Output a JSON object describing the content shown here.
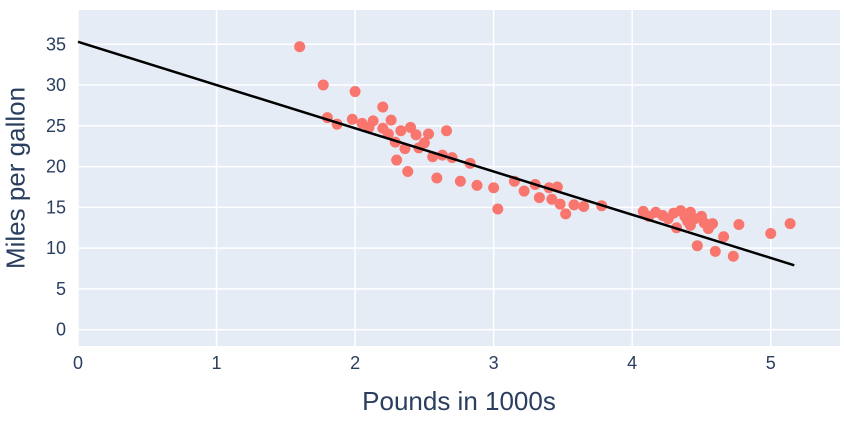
{
  "figure": {
    "background_color": "#ffffff"
  },
  "chart_data": {
    "type": "scatter",
    "title": "",
    "xlabel": "Pounds in 1000s",
    "ylabel": "Miles per gallon",
    "xlim": [
      0,
      5.5
    ],
    "ylim": [
      -2,
      39.2
    ],
    "xticks": [
      0,
      1,
      2,
      3,
      4,
      5
    ],
    "yticks": [
      0,
      5,
      10,
      15,
      20,
      25,
      30,
      35
    ],
    "grid": true,
    "legend_position": "none",
    "plot_bg_color": "#e5ecf6",
    "gridline_color": "#ffffff",
    "point_color": "#f8766d",
    "trendline_color": "#000000",
    "label_color": "#2a3f5f",
    "points": [
      [
        1.6,
        34.7
      ],
      [
        1.77,
        30.0
      ],
      [
        1.8,
        26.0
      ],
      [
        1.87,
        25.2
      ],
      [
        1.98,
        25.8
      ],
      [
        2.0,
        29.2
      ],
      [
        2.05,
        25.3
      ],
      [
        2.1,
        24.8
      ],
      [
        2.13,
        25.6
      ],
      [
        2.2,
        27.3
      ],
      [
        2.2,
        24.7
      ],
      [
        2.24,
        24.0
      ],
      [
        2.26,
        25.7
      ],
      [
        2.29,
        23.0
      ],
      [
        2.3,
        20.8
      ],
      [
        2.33,
        24.4
      ],
      [
        2.36,
        22.2
      ],
      [
        2.38,
        19.4
      ],
      [
        2.4,
        24.8
      ],
      [
        2.44,
        23.9
      ],
      [
        2.46,
        22.3
      ],
      [
        2.5,
        22.9
      ],
      [
        2.53,
        24.0
      ],
      [
        2.56,
        21.2
      ],
      [
        2.59,
        18.6
      ],
      [
        2.63,
        21.4
      ],
      [
        2.66,
        24.4
      ],
      [
        2.7,
        21.1
      ],
      [
        2.76,
        18.2
      ],
      [
        2.83,
        20.4
      ],
      [
        2.88,
        17.7
      ],
      [
        3.0,
        17.4
      ],
      [
        3.03,
        14.8
      ],
      [
        3.15,
        18.2
      ],
      [
        3.22,
        17.0
      ],
      [
        3.3,
        17.8
      ],
      [
        3.33,
        16.2
      ],
      [
        3.4,
        17.4
      ],
      [
        3.42,
        16.0
      ],
      [
        3.46,
        17.5
      ],
      [
        3.48,
        15.4
      ],
      [
        3.52,
        14.2
      ],
      [
        3.58,
        15.3
      ],
      [
        3.65,
        15.1
      ],
      [
        3.78,
        15.2
      ],
      [
        4.08,
        14.5
      ],
      [
        4.12,
        13.9
      ],
      [
        4.17,
        14.4
      ],
      [
        4.22,
        14.0
      ],
      [
        4.26,
        13.6
      ],
      [
        4.3,
        14.3
      ],
      [
        4.32,
        12.5
      ],
      [
        4.35,
        14.6
      ],
      [
        4.38,
        13.9
      ],
      [
        4.4,
        13.3
      ],
      [
        4.42,
        14.4
      ],
      [
        4.42,
        12.8
      ],
      [
        4.45,
        13.6
      ],
      [
        4.47,
        10.3
      ],
      [
        4.5,
        13.9
      ],
      [
        4.52,
        13.1
      ],
      [
        4.55,
        12.4
      ],
      [
        4.58,
        13.0
      ],
      [
        4.6,
        9.6
      ],
      [
        4.66,
        11.4
      ],
      [
        4.73,
        9.0
      ],
      [
        4.77,
        12.9
      ],
      [
        5.0,
        11.8
      ],
      [
        5.14,
        13.0
      ]
    ],
    "trendline": {
      "intercept": 35.3,
      "slope": -5.3,
      "x_start": 0,
      "x_end": 5.17
    }
  }
}
